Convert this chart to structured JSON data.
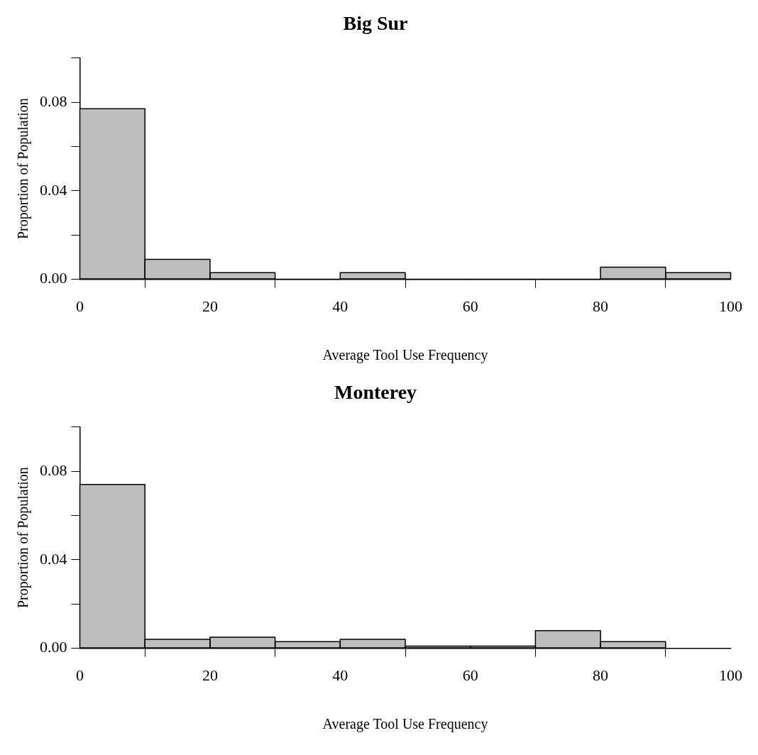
{
  "chart_data": [
    {
      "type": "histogram",
      "title": "Big Sur",
      "xlabel": "Average Tool Use Frequency",
      "ylabel": "Proportion of Population",
      "bins": [
        0,
        10,
        20,
        30,
        40,
        50,
        60,
        70,
        80,
        90,
        100
      ],
      "values": [
        0.077,
        0.009,
        0.003,
        0,
        0.003,
        0,
        0,
        0,
        0.0055,
        0.003
      ],
      "color": "#bebebe",
      "xlim": [
        0,
        100
      ],
      "xticks": [
        0,
        20,
        40,
        60,
        80,
        100
      ],
      "ylim": [
        0,
        0.1
      ],
      "yticks": [
        {
          "value": 0,
          "label": "0.00"
        },
        {
          "value": 0.02,
          "label": null
        },
        {
          "value": 0.04,
          "label": "0.04"
        },
        {
          "value": 0.06,
          "label": null
        },
        {
          "value": 0.08,
          "label": "0.08"
        },
        {
          "value": 0.1,
          "label": null
        }
      ],
      "grid": false,
      "legend": false
    },
    {
      "type": "histogram",
      "title": "Monterey",
      "xlabel": "Average Tool Use Frequency",
      "ylabel": "Proportion of Population",
      "bins": [
        0,
        10,
        20,
        30,
        40,
        50,
        60,
        70,
        80,
        90
      ],
      "values": [
        0.074,
        0.004,
        0.005,
        0.003,
        0.004,
        0.001,
        0.001,
        0.008,
        0.003
      ],
      "color": "#bebebe",
      "xlim": [
        0,
        100
      ],
      "xticks": [
        0,
        20,
        40,
        60,
        80,
        100
      ],
      "ylim": [
        0,
        0.1
      ],
      "yticks": [
        {
          "value": 0,
          "label": "0.00"
        },
        {
          "value": 0.02,
          "label": null
        },
        {
          "value": 0.04,
          "label": "0.04"
        },
        {
          "value": 0.06,
          "label": null
        },
        {
          "value": 0.08,
          "label": "0.08"
        },
        {
          "value": 0.1,
          "label": null
        }
      ],
      "grid": false,
      "legend": false
    }
  ]
}
